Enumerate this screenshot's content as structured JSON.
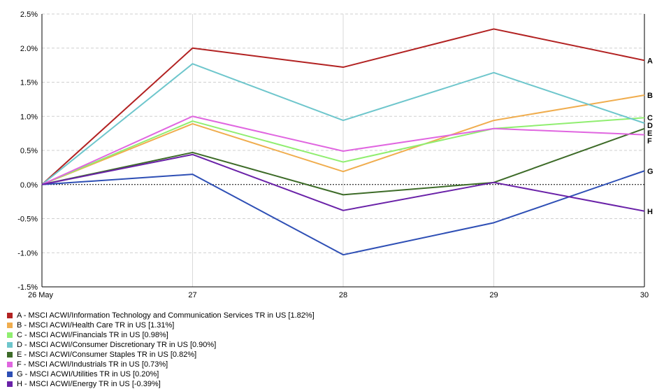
{
  "chart_data": {
    "type": "line",
    "x": [
      "26 May",
      "27",
      "28",
      "29",
      "30"
    ],
    "ylim": [
      -1.5,
      2.5
    ],
    "yticks": [
      2.5,
      2.0,
      1.5,
      1.0,
      0.5,
      0.0,
      -0.5,
      -1.0,
      -1.5
    ],
    "ytick_labels": [
      "2.5%",
      "2.0%",
      "1.5%",
      "1.0%",
      "0.5%",
      "0.0%",
      "-0.5%",
      "-1.0%",
      "-1.5%"
    ],
    "grid": true,
    "legend_position": "bottom",
    "series": [
      {
        "key": "A",
        "name": "A - MSCI ACWI/Information Technology and Communication Services TR in US [1.82%]",
        "color": "#b22222",
        "values": [
          0.0,
          2.0,
          1.72,
          2.28,
          1.82
        ]
      },
      {
        "key": "B",
        "name": "B - MSCI ACWI/Health Care TR in US [1.31%]",
        "color": "#f0ad4e",
        "values": [
          0.0,
          0.89,
          0.19,
          0.94,
          1.31
        ]
      },
      {
        "key": "C",
        "name": "C - MSCI ACWI/Financials TR in US [0.98%]",
        "color": "#90ee70",
        "values": [
          0.0,
          0.93,
          0.33,
          0.82,
          0.98
        ]
      },
      {
        "key": "D",
        "name": "D - MSCI ACWI/Consumer Discretionary TR in US [0.90%]",
        "color": "#6ec6cc",
        "values": [
          0.0,
          1.77,
          0.94,
          1.64,
          0.9
        ]
      },
      {
        "key": "E",
        "name": "E - MSCI ACWI/Consumer Staples TR in US [0.82%]",
        "color": "#3d6b28",
        "values": [
          0.0,
          0.47,
          -0.15,
          0.03,
          0.82
        ]
      },
      {
        "key": "F",
        "name": "F - MSCI ACWI/Industrials TR in US [0.73%]",
        "color": "#e066e0",
        "values": [
          0.0,
          1.0,
          0.49,
          0.82,
          0.73
        ]
      },
      {
        "key": "G",
        "name": "G - MSCI ACWI/Utilities TR in US [0.20%]",
        "color": "#2e4fb5",
        "values": [
          0.0,
          0.15,
          -1.03,
          -0.56,
          0.2
        ]
      },
      {
        "key": "H",
        "name": "H - MSCI ACWI/Energy TR in US [-0.39%]",
        "color": "#6a22a8",
        "values": [
          0.0,
          0.44,
          -0.38,
          0.03,
          -0.39
        ]
      }
    ]
  }
}
